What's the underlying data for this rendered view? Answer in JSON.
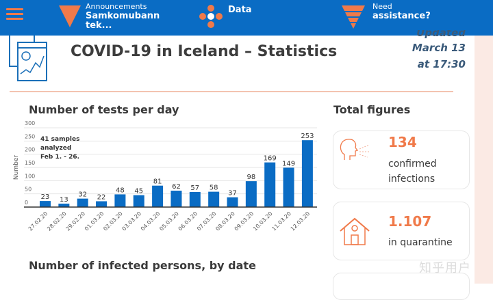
{
  "header": {
    "announcements_label": "Announcements",
    "announcements_text": "Samkomubann tek...",
    "data_label": "Data",
    "assist_top": "Need",
    "assist_bottom": "assistance?"
  },
  "page": {
    "title": "COVID-19 in Iceland – Statistics",
    "updated_1": "Updated",
    "updated_2": "March 13",
    "updated_3": "at 17:30"
  },
  "colors": {
    "header": "#0a6cc4",
    "accent": "#f07a4a",
    "bar": "#0a6cc4"
  },
  "chart_data": {
    "type": "bar",
    "title": "Number of tests per day",
    "ylabel": "Number",
    "xlabel": "",
    "ylim": [
      0,
      300
    ],
    "yticks": [
      0,
      50,
      100,
      150,
      200,
      250,
      300
    ],
    "grid": true,
    "annotation": "41 samples analyzed Feb 1. - 26.",
    "categories": [
      "27.02.20",
      "28.02.20",
      "29.02.20",
      "01.03.20",
      "02.03.20",
      "03.03.20",
      "04.03.20",
      "05.03.20",
      "06.03.20",
      "07.03.20",
      "08.03.20",
      "09.03.20",
      "10.03.20",
      "11.03.20",
      "12.03.20"
    ],
    "values": [
      23,
      13,
      32,
      22,
      48,
      45,
      81,
      62,
      57,
      58,
      37,
      98,
      169,
      149,
      253
    ]
  },
  "totals": {
    "title": "Total figures",
    "cards": [
      {
        "value": "134",
        "label1": "confirmed",
        "label2": "infections",
        "icon": "person-coughing-icon"
      },
      {
        "value": "1.107",
        "label1": "in quarantine",
        "icon": "house-icon"
      }
    ]
  },
  "section2": {
    "title": "Number of infected persons, by date"
  },
  "watermark": "知乎用户"
}
